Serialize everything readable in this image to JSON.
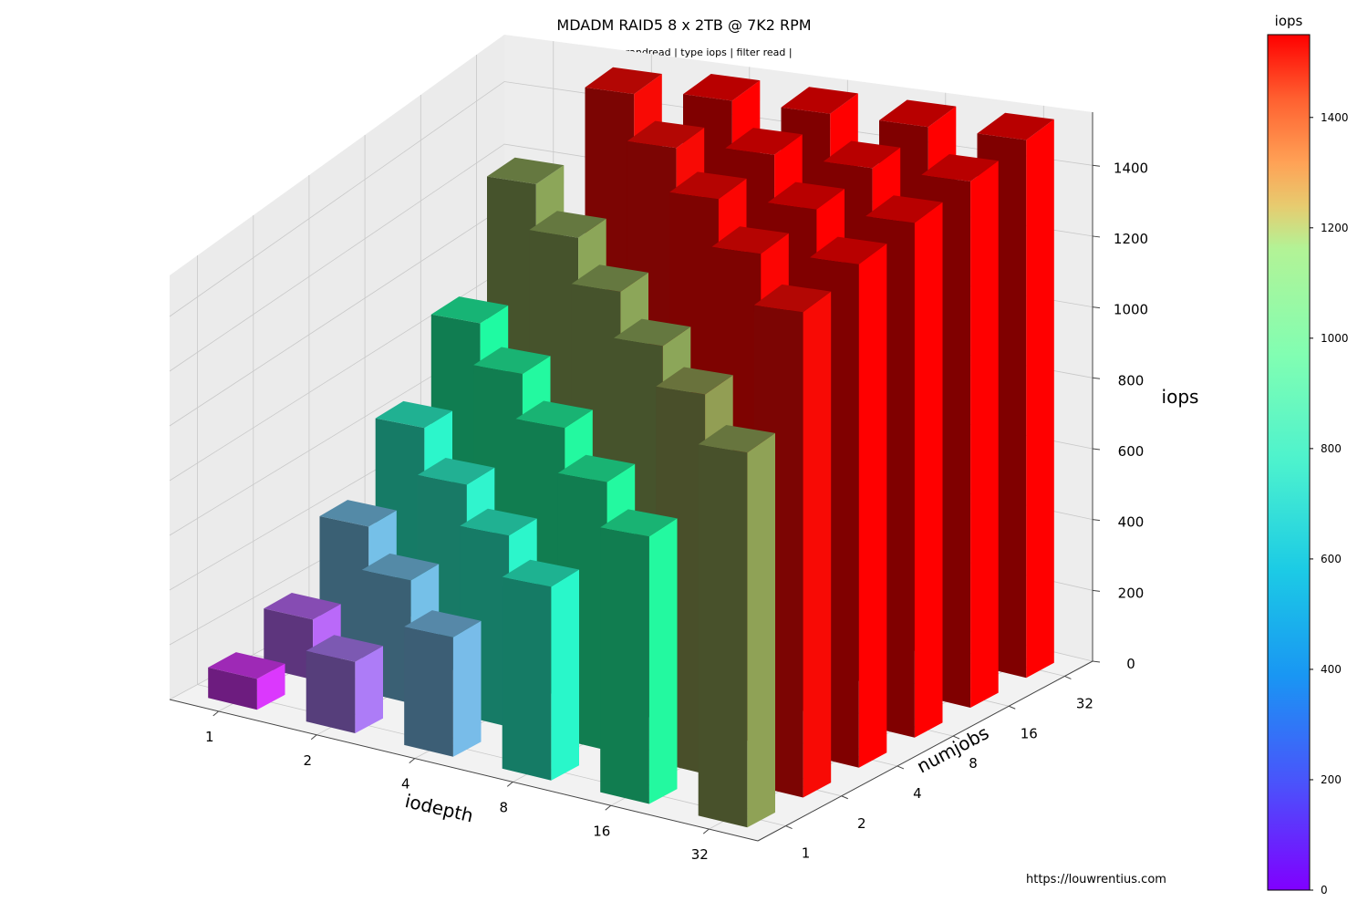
{
  "chart_data": {
    "type": "bar3d",
    "title": "MDADM RAID5 8 x 2TB @ 7K2 RPM",
    "subtitle": "| rw randread | type iops | filter read |",
    "xlabel": "iodepth",
    "ylabel": "numjobs",
    "zlabel": "iops",
    "x_categories": [
      "1",
      "2",
      "4",
      "8",
      "16",
      "32"
    ],
    "y_categories": [
      "1",
      "2",
      "4",
      "8",
      "16",
      "32"
    ],
    "zlim": [
      0,
      1550
    ],
    "z_ticks": [
      "0",
      "200",
      "400",
      "600",
      "800",
      "1000",
      "1200",
      "1400"
    ],
    "colorbar": {
      "label": "iops",
      "range": [
        0,
        1550
      ],
      "ticks": [
        "0",
        "200",
        "400",
        "600",
        "800",
        "1000",
        "1200",
        "1400"
      ]
    },
    "values": [
      [
        110,
        210,
        420,
        640,
        870,
        1200
      ],
      [
        250,
        420,
        630,
        880,
        1200,
        1530
      ],
      [
        410,
        640,
        880,
        1200,
        1530,
        1550
      ],
      [
        650,
        880,
        1200,
        1540,
        1550,
        1550
      ],
      [
        880,
        1220,
        1540,
        1550,
        1550,
        1550
      ],
      [
        1210,
        1530,
        1550,
        1550,
        1550,
        1550
      ]
    ],
    "values_layout": "values[x_index][y_index]",
    "grid": true,
    "colormap": "rainbow"
  },
  "source_url": "https://louwrentius.com"
}
